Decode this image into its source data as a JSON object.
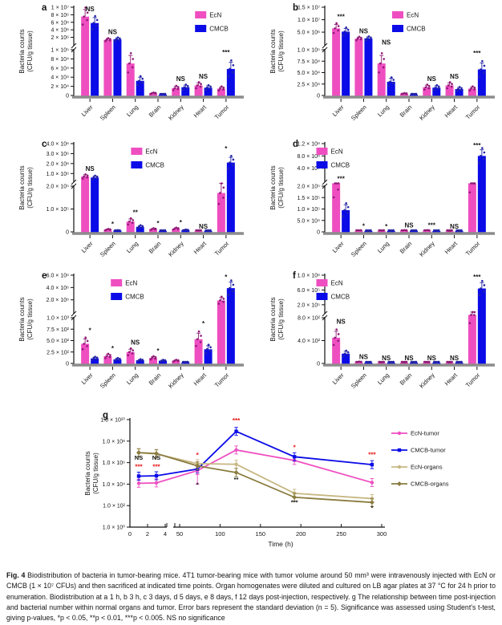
{
  "caption": {
    "label": "Fig. 4",
    "text": "Biodistribution of bacteria in tumor-bearing mice. 4T1 tumor-bearing mice with tumor volume around 50 mm³ were intravenously injected with EcN or CMCB (1 × 10⁷ CFUs) and then sacrificed at indicated time points. Organ homogenates were diluted and cultured on LB agar plates at 37 °C for 24 h prior to enumeration. Biodistribution at a 1 h, b 3 h, c 3 days, d 5 days, e 8 days, f 12 days post-injection, respectively. g The relationship between time post-injection and bacterial number within normal organs and tumor. Error bars represent the standard deviation (n = 5). Significance was assessed using Student's t-test, giving p-values, *p < 0.05, **p < 0.01, ***p < 0.005. NS no significance"
  },
  "ylabel_line1": "Bacteria counts",
  "ylabel_line2": "(CFU/g tissue)",
  "colors": {
    "ecn": "#EF4EC1",
    "cmcb": "#0B0BE8",
    "ecn_dot": "#8E1A74",
    "cmcb_dot": "#2424A6",
    "organs_ecn": "#C7B884",
    "organs_cmcb": "#8A7C3F",
    "sig_red": "#E81212",
    "baseline": "#8C8C8C"
  },
  "chart_data": [
    {
      "panel": "a",
      "type": "bar",
      "timepoint": "1 h",
      "categories": [
        "Liver",
        "Spleen",
        "Lung",
        "Brain",
        "Kidney",
        "Heart",
        "Tumor"
      ],
      "series": [
        {
          "name": "EcN",
          "values": [
            7500000.0,
            1350000.0,
            70000.0,
            5000.0,
            16000.0,
            22000.0,
            15000.0
          ]
        },
        {
          "name": "CMCB",
          "values": [
            5800000.0,
            1500000.0,
            32000.0,
            2000.0,
            18000.0,
            17000.0,
            58000.0
          ]
        }
      ],
      "significance": [
        "NS",
        "NS",
        "",
        "",
        "NS",
        "NS",
        "***"
      ],
      "axis_low": {
        "max": 100000.0,
        "ticks": [
          [
            0,
            "0"
          ],
          [
            20000.0,
            "2 × 10⁴"
          ],
          [
            40000.0,
            "4 × 10⁴"
          ],
          [
            60000.0,
            "6 × 10⁴"
          ],
          [
            80000.0,
            "8 × 10⁴"
          ],
          [
            100000.0,
            "1 × 10⁵"
          ]
        ]
      },
      "axis_high": {
        "min": 200000.0,
        "max": 10000000.0,
        "ticks": [
          [
            2000000.0,
            "2 × 10⁶"
          ],
          [
            4000000.0,
            "4 × 10⁶"
          ],
          [
            6000000.0,
            "6 × 10⁶"
          ],
          [
            8000000.0,
            "8 × 10⁶"
          ],
          [
            10000000.0,
            "1 × 10⁷"
          ]
        ]
      },
      "legend_x": 0.72
    },
    {
      "panel": "b",
      "type": "bar",
      "timepoint": "3 h",
      "categories": [
        "Liver",
        "Spleen",
        "Lung",
        "Brain",
        "Kidney",
        "Heart",
        "Tumor"
      ],
      "series": [
        {
          "name": "EcN",
          "values": [
            6500000.0,
            2400000.0,
            70000.0,
            4000.0,
            18000.0,
            22000.0,
            15000.0
          ]
        },
        {
          "name": "CMCB",
          "values": [
            5200000.0,
            2500000.0,
            30000.0,
            2000.0,
            17000.0,
            14000.0,
            57000.0
          ]
        }
      ],
      "significance": [
        "***",
        "NS",
        "NS",
        "",
        "NS",
        "NS",
        "***"
      ],
      "axis_low": {
        "max": 100000.0,
        "ticks": [
          [
            0,
            "0"
          ],
          [
            25000.0,
            "2.5 × 10⁴"
          ],
          [
            50000.0,
            "5.0 × 10⁴"
          ],
          [
            75000.0,
            "7.5 × 10⁴"
          ],
          [
            100000.0,
            "1.0 × 10⁵"
          ]
        ]
      },
      "axis_high": {
        "min": 200000.0,
        "max": 15000000.0,
        "ticks": [
          [
            5000000.0,
            "5.0 × 10⁶"
          ],
          [
            10000000.0,
            "1.0 × 10⁷"
          ],
          [
            15000000.0,
            "1.5 × 10⁷"
          ]
        ]
      },
      "legend_x": 0.4
    },
    {
      "panel": "c",
      "type": "bar",
      "timepoint": "3 days",
      "categories": [
        "Liver",
        "Spleen",
        "Lung",
        "Brain",
        "Kidney",
        "Heart",
        "Tumor"
      ],
      "series": [
        {
          "name": "EcN",
          "values": [
            700000.0,
            10000.0,
            45000.0,
            12000.0,
            14000.0,
            3000.0,
            170000.0
          ]
        },
        {
          "name": "CMCB",
          "values": [
            600000.0,
            6000.0,
            22000.0,
            4000.0,
            8000.0,
            2000.0,
            2100000.0
          ]
        }
      ],
      "significance": [
        "NS",
        "*",
        "**",
        "*",
        "*",
        "NS",
        "*"
      ],
      "axis_low": {
        "max": 200000.0,
        "ticks": [
          [
            0,
            "0"
          ],
          [
            100000.0,
            "1.0 × 10⁵"
          ],
          [
            200000.0,
            "2.0 × 10⁵"
          ]
        ]
      },
      "axis_high": {
        "min": 300000.0,
        "max": 4000000.0,
        "ticks": [
          [
            1000000.0,
            "1.0 × 10⁶"
          ],
          [
            2000000.0,
            "2.0 × 10⁶"
          ],
          [
            3000000.0,
            "3.0 × 10⁶"
          ],
          [
            4000000.0,
            "4.0 × 10⁶"
          ]
        ]
      },
      "legend_x": 0.34
    },
    {
      "panel": "d",
      "type": "bar",
      "timepoint": "5 days",
      "categories": [
        "Liver",
        "Spleen",
        "Lung",
        "Brain",
        "Kidney",
        "Heart",
        "Tumor"
      ],
      "series": [
        {
          "name": "EcN",
          "values": [
            210000.0,
            4000.0,
            3000.0,
            6000.0,
            6000.0,
            2000.0,
            240000.0
          ]
        },
        {
          "name": "CMCB",
          "values": [
            95000.0,
            1500.0,
            2000.0,
            5000.0,
            3000.0,
            1500.0,
            800000000.0
          ]
        }
      ],
      "significance": [
        "***",
        "*",
        "*",
        "NS",
        "***",
        "NS",
        "***"
      ],
      "axis_low": {
        "max": 200000.0,
        "ticks": [
          [
            0,
            "0"
          ],
          [
            50000.0,
            "5.0 × 10⁴"
          ],
          [
            100000.0,
            "1.0 × 10⁵"
          ],
          [
            150000.0,
            "1.5 × 10⁵"
          ],
          [
            200000.0,
            "2.0 × 10⁵"
          ]
        ]
      },
      "axis_high": {
        "min": 1000000.0,
        "max": 1200000000.0,
        "ticks": [
          [
            400000000.0,
            "4.0 × 10⁸"
          ],
          [
            800000000.0,
            "8.0 × 10⁸"
          ],
          [
            1200000000.0,
            "1.2 × 10⁹"
          ]
        ]
      },
      "legend_x": -0.05
    },
    {
      "panel": "e",
      "type": "bar",
      "timepoint": "8 days",
      "categories": [
        "Liver",
        "Spleen",
        "Lung",
        "Brain",
        "Kidney",
        "Heart",
        "Tumor"
      ],
      "series": [
        {
          "name": "EcN",
          "values": [
            430,
            160,
            250,
            120,
            60,
            530,
            1900000.0
          ]
        },
        {
          "name": "CMCB",
          "values": [
            110,
            90,
            70,
            60,
            25,
            310,
            3900000.0
          ]
        }
      ],
      "significance": [
        "*",
        "*",
        "NS",
        "*",
        "",
        "*",
        "*"
      ],
      "axis_low": {
        "max": 1000.0,
        "ticks": [
          [
            0,
            "0"
          ],
          [
            250.0,
            "2.5 × 10²"
          ],
          [
            500.0,
            "5.0 × 10²"
          ],
          [
            750.0,
            "7.5 × 10²"
          ],
          [
            1000.0,
            "1.0 × 10³"
          ]
        ]
      },
      "axis_high": {
        "min": 10000.0,
        "max": 6000000.0,
        "ticks": [
          [
            2000000.0,
            "2.0 × 10⁶"
          ],
          [
            4000000.0,
            "4.0 × 10⁶"
          ],
          [
            6000000.0,
            "6.0 × 10⁶"
          ]
        ]
      },
      "legend_x": 0.22
    },
    {
      "panel": "f",
      "type": "bar",
      "timepoint": "12 days",
      "categories": [
        "Liver",
        "Spleen",
        "Lung",
        "Brain",
        "Kidney",
        "Heart",
        "Tumor"
      ],
      "series": [
        {
          "name": "EcN",
          "values": [
            450,
            25,
            8,
            8,
            10,
            8,
            980
          ]
        },
        {
          "name": "CMCB",
          "values": [
            170,
            12,
            6,
            6,
            8,
            6,
            640000.0
          ]
        }
      ],
      "significance": [
        "NS",
        "NS",
        "NS",
        "NS",
        "NS",
        "NS",
        "***"
      ],
      "axis_low": {
        "max": 800.0,
        "ticks": [
          [
            0,
            "0"
          ],
          [
            400.0,
            "4.0 × 10²"
          ],
          [
            800.0,
            "8.0 × 10²"
          ]
        ]
      },
      "axis_high": {
        "min": 1000.0,
        "max": 1000000.0,
        "ticks": [
          [
            200000.0,
            "2.0 × 10⁵"
          ],
          [
            600000.0,
            "6.0 × 10⁵"
          ],
          [
            1000000.0,
            "1.0 × 10⁶"
          ]
        ]
      },
      "legend_x": -0.05
    },
    {
      "panel": "g",
      "type": "line",
      "x_label": "Time (h)",
      "x_times": [
        1,
        3,
        72,
        120,
        192,
        288
      ],
      "x_axis": {
        "left_ticks": [
          0,
          2,
          4
        ],
        "right_ticks": [
          50,
          100,
          150,
          200,
          250,
          300
        ],
        "break_after": 4
      },
      "y_ticks": [
        [
          1,
          "1.0 × 10⁰"
        ],
        [
          100.0,
          "1.0 × 10²"
        ],
        [
          10000.0,
          "1.0 × 10⁴"
        ],
        [
          1000000.0,
          "1.0 × 10⁶"
        ],
        [
          100000000.0,
          "1.0 × 10⁸"
        ],
        [
          10000000000.0,
          "1.0 × 10¹⁰"
        ]
      ],
      "series": [
        {
          "name": "EcN-tumor",
          "color_key": "ecn",
          "marker": "circle",
          "values": [
            12000.0,
            13000.0,
            180000.0,
            15000000.0,
            1600000.0,
            14000.0
          ]
        },
        {
          "name": "CMCB-tumor",
          "color_key": "cmcb",
          "marker": "square",
          "values": [
            55000.0,
            60000.0,
            250000.0,
            800000000.0,
            3500000.0,
            650000.0
          ]
        },
        {
          "name": "EcN-organs",
          "color_key": "organs_ecn",
          "marker": "circle",
          "values": [
            8000000.0,
            6500000.0,
            800000.0,
            700000.0,
            1400.0,
            450.0
          ]
        },
        {
          "name": "CMCB-organs",
          "color_key": "organs_cmcb",
          "marker": "diamond",
          "values": [
            8500000.0,
            7000000.0,
            500000.0,
            120000.0,
            600.0,
            200.0
          ]
        }
      ],
      "big_error": {
        "t": 72,
        "from": 180000.0,
        "to": 10000.0,
        "color_key": "ecn"
      },
      "sig_red": {
        "labels": [
          "***",
          "***",
          "*",
          "***",
          "*",
          "***"
        ],
        "y": [
          250000.0,
          250000.0,
          3000000.0,
          5000000000.0,
          16000000.0,
          3500000.0
        ]
      },
      "sig_black": {
        "labels": [
          "NS",
          "NS",
          "*",
          "**",
          "***",
          "*"
        ],
        "y": [
          1800000.0,
          1800000.0,
          6000.0,
          18000.0,
          130.0,
          40.0
        ]
      }
    }
  ]
}
